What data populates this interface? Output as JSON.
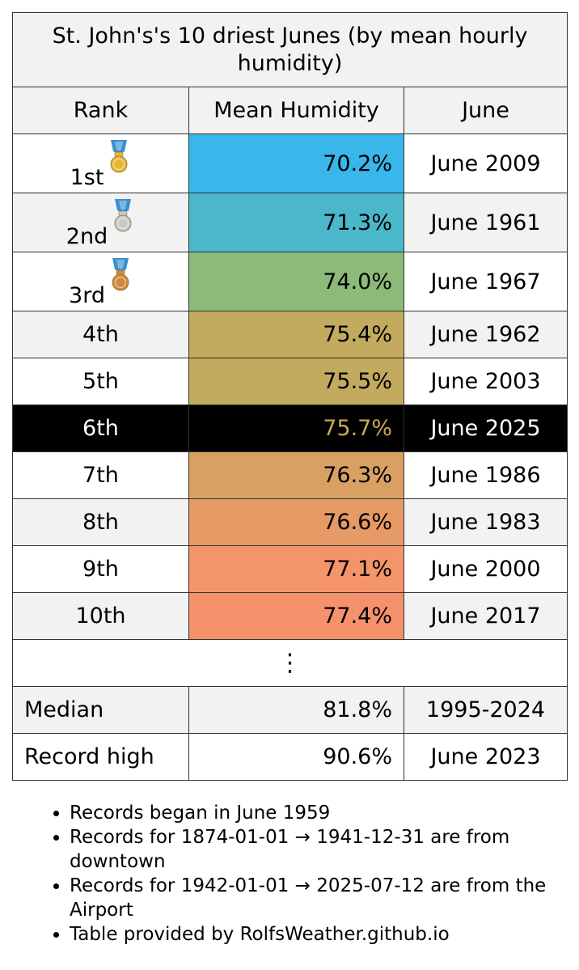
{
  "title": "St. John's's 10 driest Junes (by mean hourly humidity)",
  "headers": {
    "rank": "Rank",
    "value": "Mean Humidity",
    "june": "June"
  },
  "rows": [
    {
      "rank": "1st",
      "value": "70.2%",
      "june": "June 2009",
      "color": "#39b6ea",
      "medal": "gold"
    },
    {
      "rank": "2nd",
      "value": "71.3%",
      "june": "June 1961",
      "color": "#4ab8ca",
      "medal": "silver"
    },
    {
      "rank": "3rd",
      "value": "74.0%",
      "june": "June 1967",
      "color": "#8cba79",
      "medal": "bronze"
    },
    {
      "rank": "4th",
      "value": "75.4%",
      "june": "June 1962",
      "color": "#c2aa5e"
    },
    {
      "rank": "5th",
      "value": "75.5%",
      "june": "June 2003",
      "color": "#c2aa5e"
    },
    {
      "rank": "6th",
      "value": "75.7%",
      "june": "June 2025",
      "color": "#000000",
      "highlight": true
    },
    {
      "rank": "7th",
      "value": "76.3%",
      "june": "June 1986",
      "color": "#d9a063"
    },
    {
      "rank": "8th",
      "value": "76.6%",
      "june": "June 1983",
      "color": "#e69a65"
    },
    {
      "rank": "9th",
      "value": "77.1%",
      "june": "June 2000",
      "color": "#f39469"
    },
    {
      "rank": "10th",
      "value": "77.4%",
      "june": "June 2017",
      "color": "#f5916b"
    }
  ],
  "ellipsis": "⋮",
  "footer": [
    {
      "label": "Median",
      "value": "81.8%",
      "june": "1995-2024"
    },
    {
      "label": "Record high",
      "value": "90.6%",
      "june": "June 2023"
    }
  ],
  "notes": [
    "Records began in June 1959",
    "Records for 1874-01-01 → 1941-12-31 are from downtown",
    "Records for 1942-01-01 → 2025-07-12 are from the Airport",
    "Table provided by RolfsWeather.github.io"
  ],
  "medal_colors": {
    "gold": "#e8b634",
    "silver": "#c9c9c9",
    "bronze": "#d08a3c",
    "ribbon": "#3a8fd0"
  }
}
